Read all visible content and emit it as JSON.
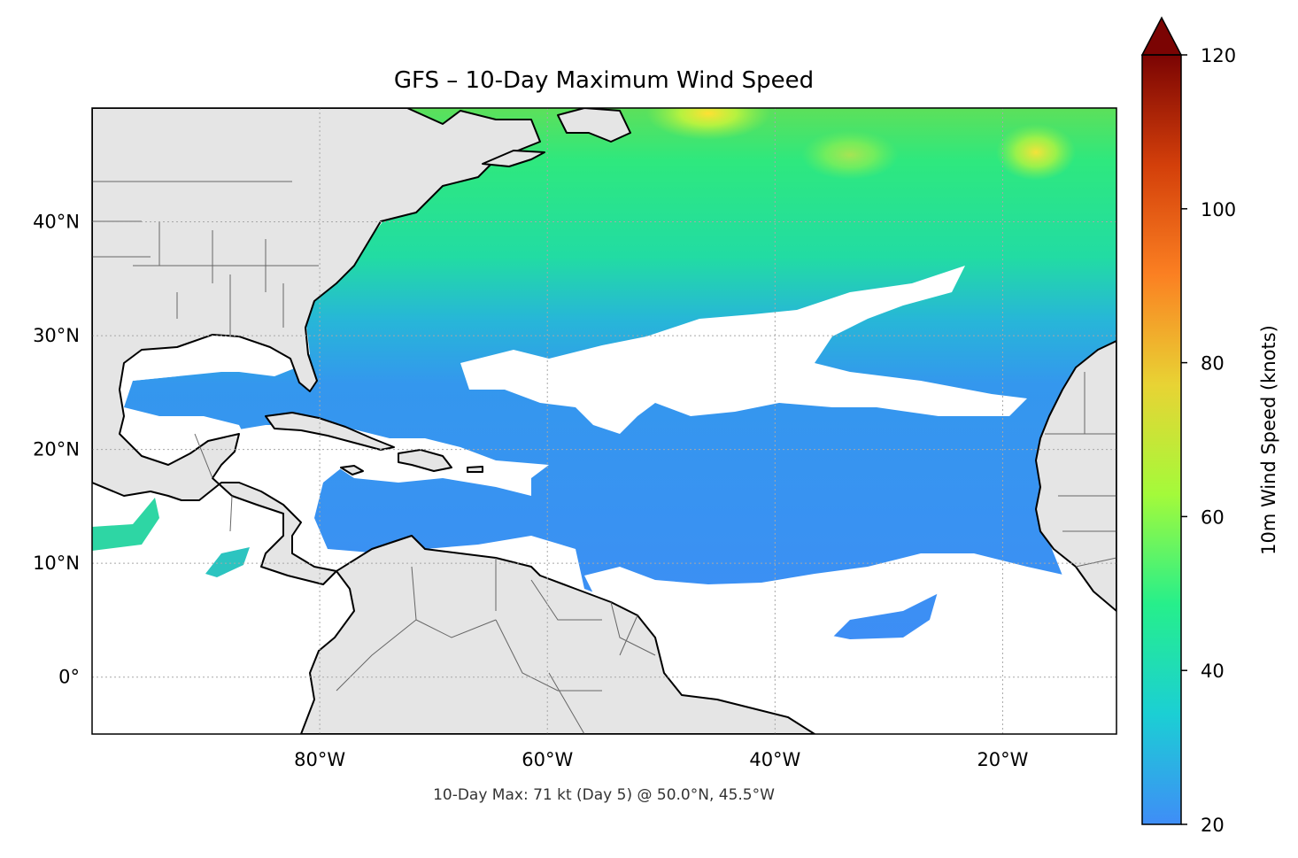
{
  "title": "GFS – 10-Day Maximum Wind Speed",
  "caption": "10-Day Max: 71 kt (Day 5) @ 50.0°N, 45.5°W",
  "map": {
    "extent": {
      "lon_min": -100,
      "lon_max": -10,
      "lat_min": -5,
      "lat_max": 50
    },
    "lon_ticks": [
      {
        "value": -80,
        "label": "80°W"
      },
      {
        "value": -60,
        "label": "60°W"
      },
      {
        "value": -40,
        "label": "40°W"
      },
      {
        "value": -20,
        "label": "20°W"
      }
    ],
    "lat_ticks": [
      {
        "value": 40,
        "label": "40°N"
      },
      {
        "value": 30,
        "label": "30°N"
      },
      {
        "value": 20,
        "label": "20°N"
      },
      {
        "value": 10,
        "label": "10°N"
      },
      {
        "value": 0,
        "label": "0°"
      }
    ],
    "land_color": "#e5e5e5",
    "ocean_min_color": "#3d8ef5",
    "max_point": {
      "value": 71,
      "unit": "kt",
      "day": 5,
      "lat": 50.0,
      "lon": -45.5
    }
  },
  "colorbar": {
    "label": "10m Wind Speed (knots)",
    "min": 20,
    "max": 120,
    "extend": "max",
    "ticks": [
      {
        "value": 120,
        "label": "120"
      },
      {
        "value": 100,
        "label": "100"
      },
      {
        "value": 80,
        "label": "80"
      },
      {
        "value": 60,
        "label": "60"
      },
      {
        "value": 40,
        "label": "40"
      },
      {
        "value": 20,
        "label": "20"
      }
    ],
    "colors": [
      "#3f8df7",
      "#1bcfd4",
      "#26ef8b",
      "#a4fa3a",
      "#e8d334",
      "#fb8022",
      "#d33f0a",
      "#7b0403"
    ]
  }
}
